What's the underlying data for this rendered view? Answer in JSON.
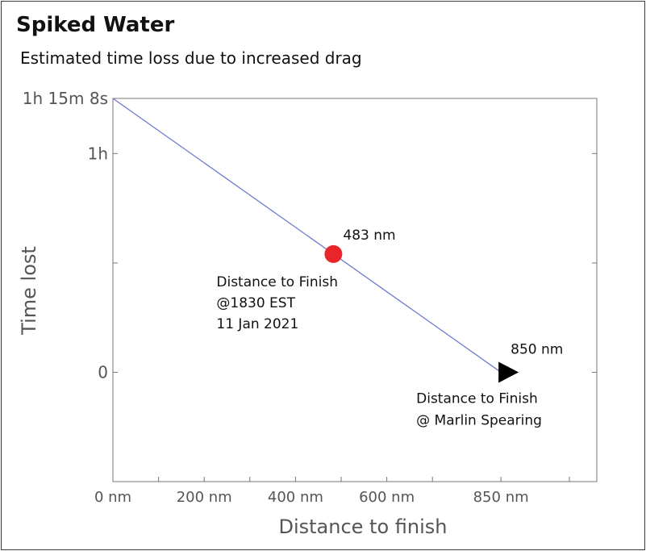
{
  "header": {
    "title": "Spiked Water",
    "subtitle": "Estimated time loss due to increased drag"
  },
  "chart_data": {
    "type": "line",
    "title": "Spiked Water",
    "subtitle": "Estimated time loss due to increased drag",
    "xlabel": "Distance to finish",
    "ylabel": "Time lost",
    "grid": false,
    "xlim": [
      0,
      1060
    ],
    "ylim_seconds": [
      -1800,
      4508
    ],
    "x_ticks": [
      {
        "value": 0,
        "label": "0 nm"
      },
      {
        "value": 200,
        "label": "200 nm"
      },
      {
        "value": 400,
        "label": "400 nm"
      },
      {
        "value": 600,
        "label": "600 nm"
      },
      {
        "value": 850,
        "label": "850 nm"
      }
    ],
    "y_ticks": [
      {
        "value": 0,
        "label": "0"
      },
      {
        "value": 3600,
        "label": "1h"
      },
      {
        "value": 4508,
        "label": "1h 15m 8s"
      }
    ],
    "series": [
      {
        "x": [
          0,
          850
        ],
        "y": [
          4508,
          0
        ],
        "color": "#6f7ccf"
      }
    ],
    "points": [
      {
        "x": 483,
        "y": 1946,
        "marker": "circle",
        "color": "#e8252a",
        "label": "483 nm",
        "note": [
          "Distance to Finish",
          "@1830 EST",
          "11 Jan 2021"
        ]
      },
      {
        "x": 850,
        "y": 0,
        "marker": "triangle",
        "color": "#000000",
        "label": "850 nm",
        "note": [
          "Distance to Finish",
          "@ Marlin Spearing"
        ]
      }
    ]
  }
}
